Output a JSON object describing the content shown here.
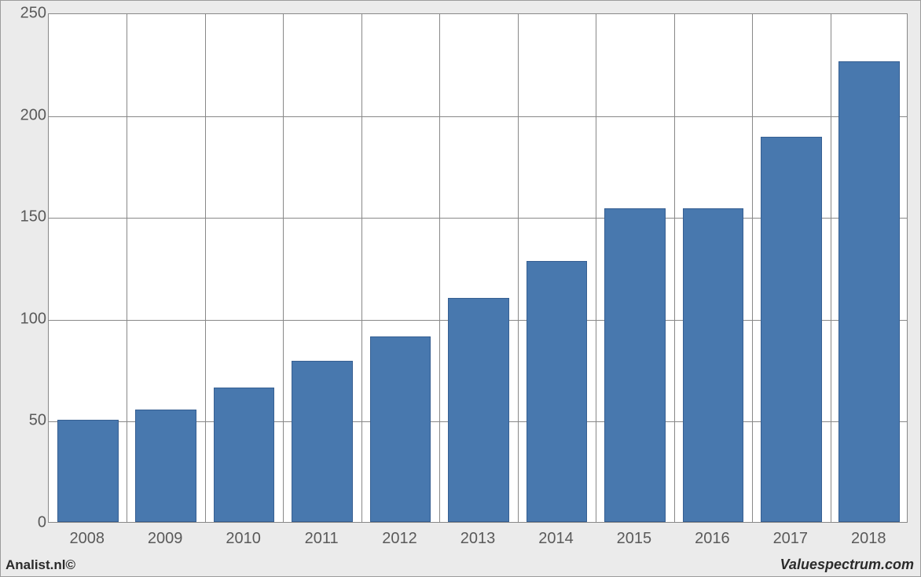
{
  "chart": {
    "type": "bar",
    "categories": [
      "2008",
      "2009",
      "2010",
      "2011",
      "2012",
      "2013",
      "2014",
      "2015",
      "2016",
      "2017",
      "2018"
    ],
    "values": [
      50,
      55,
      66,
      79,
      91,
      110,
      128,
      154,
      154,
      189,
      226
    ],
    "bar_color": "#4878ae",
    "bar_border_color": "#365f92",
    "plot_background": "#ffffff",
    "frame_background": "#ebebeb",
    "grid_color": "#888888",
    "border_color": "#888888",
    "ylim": [
      0,
      250
    ],
    "ytick_step": 50,
    "yticks": [
      0,
      50,
      100,
      150,
      200,
      250
    ],
    "xtick_labels": [
      "2008",
      "2009",
      "2010",
      "2011",
      "2012",
      "2013",
      "2014",
      "2015",
      "2016",
      "2017",
      "2018"
    ],
    "bar_width_ratio": 0.78,
    "axis_label_fontsize": 20,
    "axis_label_color": "#5a5a5a"
  },
  "footer": {
    "left": "Analist.nl©",
    "right": "Valuespectrum.com"
  }
}
